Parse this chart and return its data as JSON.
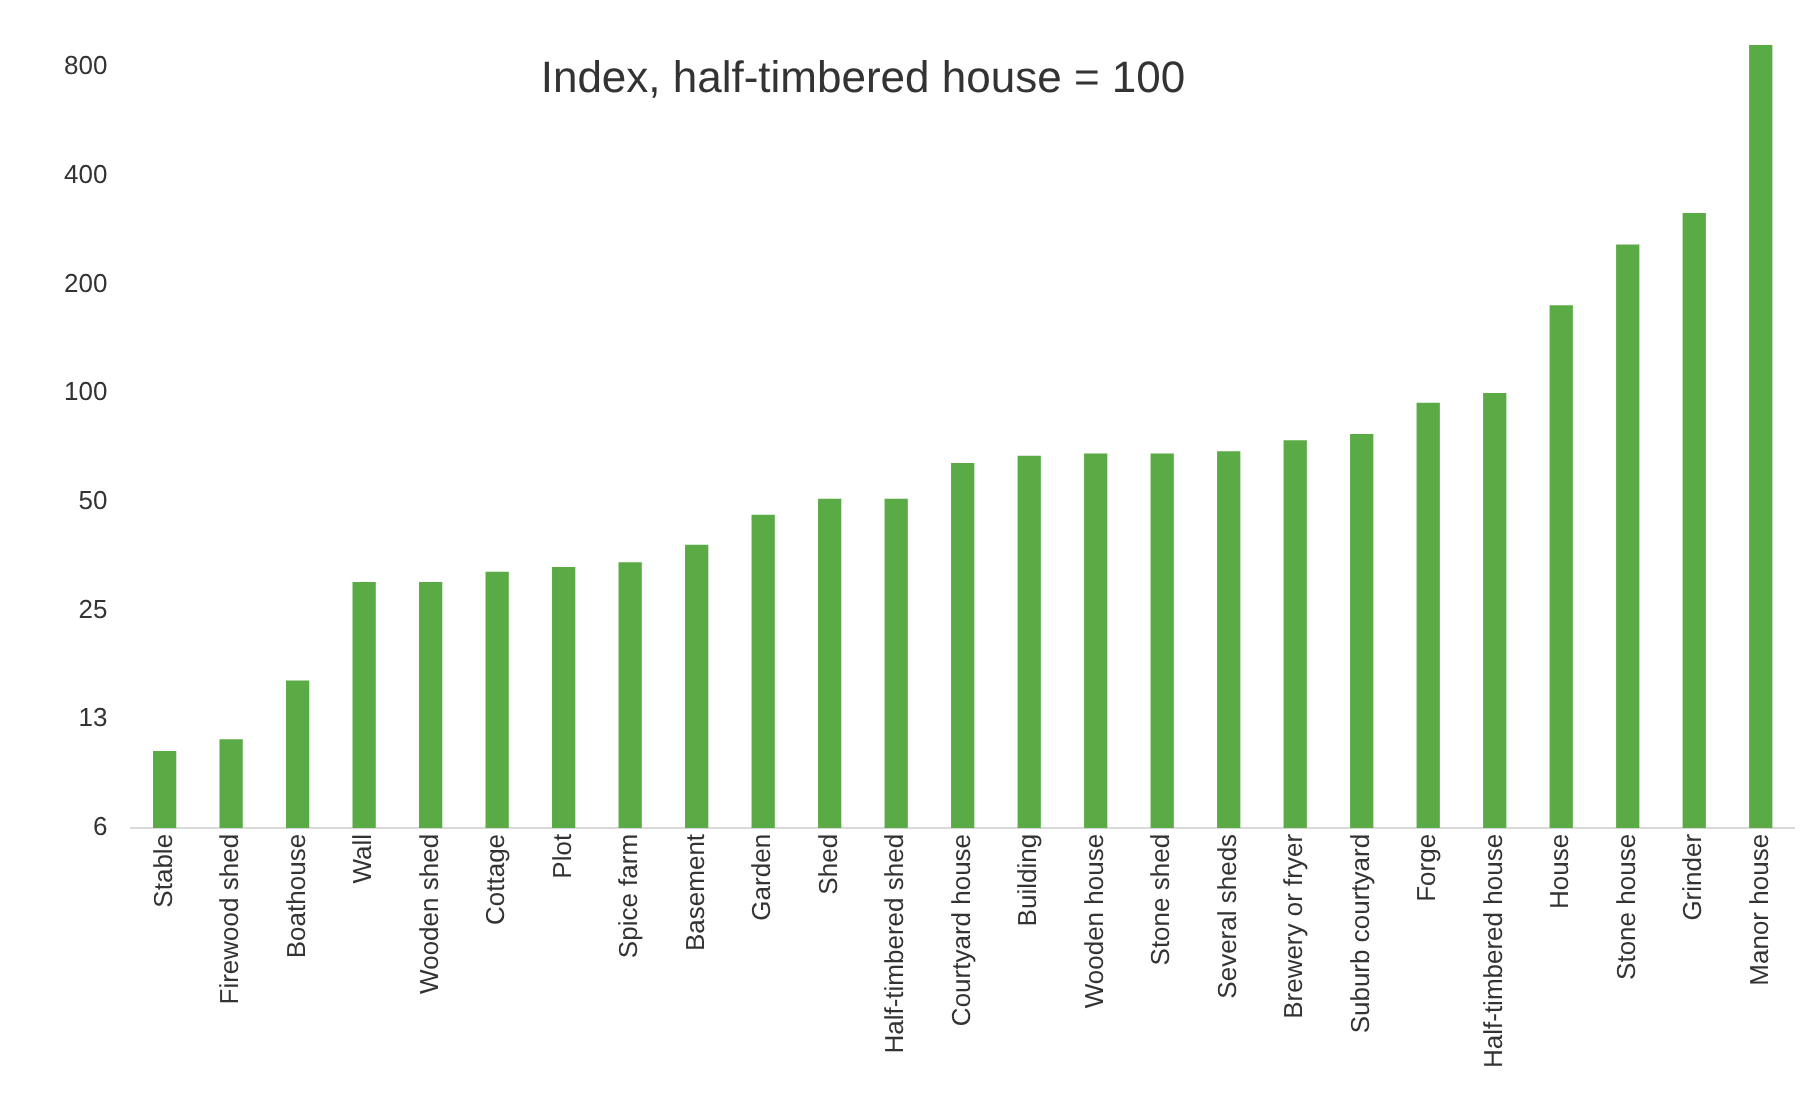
{
  "chart_data": {
    "type": "bar",
    "annotations": [
      "Index, half-timbered house = 100"
    ],
    "categories": [
      "Stable",
      "Firewood shed",
      "Boathouse",
      "Wall",
      "Wooden shed",
      "Cottage",
      "Plot",
      "Spice farm",
      "Basement",
      "Garden",
      "Shed",
      "Half-timbered shed",
      "Courtyard house",
      "Building",
      "Wooden house",
      "Stone shed",
      "Several sheds",
      "Brewery or fryer",
      "Suburb courtyard",
      "Forge",
      "Half-timbered house",
      "House",
      "Stone house",
      "Grinder",
      "Manor house"
    ],
    "values": [
      10.2,
      11,
      16,
      30,
      30,
      32,
      33,
      34,
      38,
      46,
      51,
      51,
      64,
      67,
      68,
      68,
      69,
      74,
      77,
      94,
      100,
      175,
      258,
      315,
      920
    ],
    "color": "#5aaa46",
    "log": "y",
    "ylim": [
      6.25,
      950
    ],
    "yticks": [
      {
        "value": 6.25,
        "label": "6"
      },
      {
        "value": 12.5,
        "label": "13"
      },
      25,
      50,
      100,
      200,
      400,
      800
    ],
    "grid": false,
    "legend": false
  }
}
